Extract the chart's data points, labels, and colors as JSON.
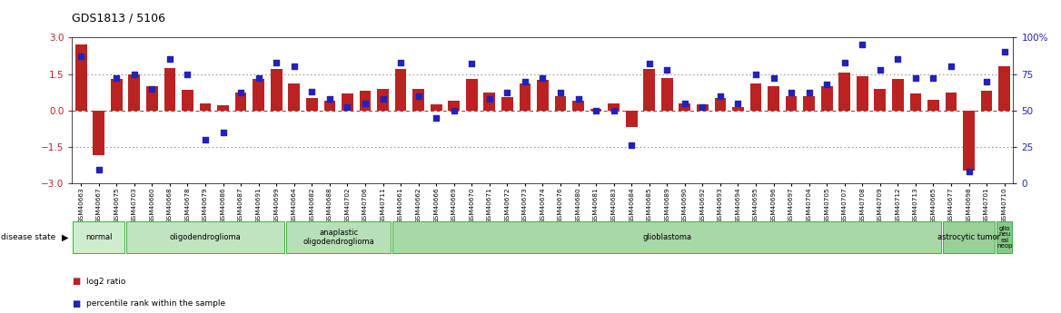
{
  "title": "GDS1813 / 5106",
  "samples": [
    "GSM40663",
    "GSM40667",
    "GSM40675",
    "GSM40703",
    "GSM40660",
    "GSM40668",
    "GSM40678",
    "GSM40679",
    "GSM40686",
    "GSM40687",
    "GSM40691",
    "GSM40699",
    "GSM40664",
    "GSM40682",
    "GSM40688",
    "GSM40702",
    "GSM40706",
    "GSM40711",
    "GSM40661",
    "GSM40662",
    "GSM40666",
    "GSM40669",
    "GSM40670",
    "GSM40671",
    "GSM40672",
    "GSM40673",
    "GSM40674",
    "GSM40676",
    "GSM40680",
    "GSM40681",
    "GSM40683",
    "GSM40684",
    "GSM40685",
    "GSM40689",
    "GSM40690",
    "GSM40692",
    "GSM40693",
    "GSM40694",
    "GSM40695",
    "GSM40696",
    "GSM40697",
    "GSM40704",
    "GSM40705",
    "GSM40707",
    "GSM40708",
    "GSM40709",
    "GSM40712",
    "GSM40713",
    "GSM40665",
    "GSM40677",
    "GSM40698",
    "GSM40701",
    "GSM40710"
  ],
  "log2_ratio": [
    2.7,
    -1.85,
    1.3,
    1.5,
    1.0,
    1.75,
    0.85,
    0.3,
    0.2,
    0.75,
    1.3,
    1.7,
    1.1,
    0.5,
    0.4,
    0.7,
    0.8,
    0.9,
    1.7,
    0.9,
    0.25,
    0.4,
    1.3,
    0.75,
    0.55,
    1.1,
    1.25,
    0.6,
    0.4,
    0.05,
    0.3,
    -0.7,
    1.7,
    1.35,
    0.3,
    0.25,
    0.5,
    0.15,
    1.1,
    1.0,
    0.6,
    0.6,
    1.0,
    1.55,
    1.4,
    0.9,
    1.3,
    0.7,
    0.45,
    0.75,
    -2.5,
    0.8,
    1.8
  ],
  "percentile": [
    87,
    9,
    72,
    75,
    65,
    85,
    75,
    30,
    35,
    62,
    72,
    83,
    80,
    63,
    58,
    52,
    55,
    58,
    83,
    60,
    45,
    50,
    82,
    58,
    62,
    70,
    72,
    62,
    58,
    50,
    50,
    26,
    82,
    78,
    55,
    52,
    60,
    55,
    75,
    72,
    62,
    62,
    68,
    83,
    95,
    78,
    85,
    72,
    72,
    80,
    8,
    70,
    90
  ],
  "groups": [
    {
      "label": "normal",
      "start": 0,
      "end": 3,
      "color": "#d0ecd0"
    },
    {
      "label": "oligodendroglioma",
      "start": 3,
      "end": 12,
      "color": "#c0e4c0"
    },
    {
      "label": "anaplastic\noligodendroglioma",
      "start": 12,
      "end": 18,
      "color": "#b8e0b8"
    },
    {
      "label": "glioblastoma",
      "start": 18,
      "end": 49,
      "color": "#a8d8a8"
    },
    {
      "label": "astrocytic tumor",
      "start": 49,
      "end": 52,
      "color": "#98d098"
    },
    {
      "label": "glio\nneu\nral\nneop",
      "start": 52,
      "end": 53,
      "color": "#88c888"
    }
  ],
  "bar_color": "#bb2222",
  "dot_color": "#2222bb",
  "ylim_left": [
    -3,
    3
  ],
  "ylim_right": [
    0,
    100
  ],
  "yticks_left": [
    -3,
    -1.5,
    0,
    1.5,
    3
  ],
  "yticks_right": [
    0,
    25,
    50,
    75,
    100
  ],
  "background_color": "#ffffff",
  "label_log2": "log2 ratio",
  "label_pct": "percentile rank within the sample"
}
